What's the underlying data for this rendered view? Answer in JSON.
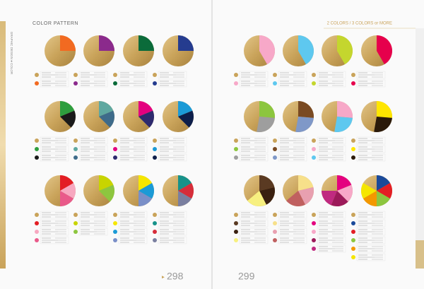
{
  "left_page": {
    "header": "COLOR PATTERN",
    "spine": "GRAPHIC DESIGN ● COLOR",
    "page_number": "298",
    "patterns": [
      {
        "colors": [
          "#f26a21"
        ]
      },
      {
        "colors": [
          "#8b2a8c"
        ]
      },
      {
        "colors": [
          "#0b6b3a"
        ]
      },
      {
        "colors": [
          "#253c8f"
        ]
      },
      {
        "colors": [
          "#2e9e3e",
          "#1a1a1a"
        ]
      },
      {
        "colors": [
          "#5fa8a0",
          "#3e6b8a"
        ]
      },
      {
        "colors": [
          "#e4007f",
          "#2d2a6e"
        ]
      },
      {
        "colors": [
          "#1b9ad6",
          "#0d1e4a"
        ]
      },
      {
        "colors": [
          "#e31e24",
          "#f7a8c0",
          "#e95a8a"
        ]
      },
      {
        "colors": [
          "#c8d400",
          "#8dc63f"
        ]
      },
      {
        "colors": [
          "#f5e600",
          "#1b9ad6",
          "#7a8fc8"
        ]
      },
      {
        "colors": [
          "#17928a",
          "#d62d3a",
          "#7a7fa0"
        ]
      }
    ]
  },
  "right_page": {
    "header": "2 COLORS / 3 COLORS or MORE",
    "page_number": "299",
    "patterns": [
      {
        "colors": [
          "#f7a8c8"
        ]
      },
      {
        "colors": [
          "#5ec8ef"
        ]
      },
      {
        "colors": [
          "#c4d62e"
        ]
      },
      {
        "colors": [
          "#e6004c"
        ]
      },
      {
        "colors": [
          "#8cc63f",
          "#9e9e9e"
        ]
      },
      {
        "colors": [
          "#7a4a22",
          "#7f98c8"
        ]
      },
      {
        "colors": [
          "#f7a8c8",
          "#5ec8ef"
        ]
      },
      {
        "colors": [
          "#ffe600",
          "#2b1a0a"
        ]
      },
      {
        "colors": [
          "#5a3a22",
          "#3a2010",
          "#f7f080"
        ]
      },
      {
        "colors": [
          "#f7e08a",
          "#e8a0b0",
          "#c06060"
        ]
      },
      {
        "colors": [
          "#e4007f",
          "#f7a8c8",
          "#9c1a5a",
          "#c02a80"
        ]
      },
      {
        "colors": [
          "#1b4a9a",
          "#e31e24",
          "#8dc63f",
          "#f39800",
          "#f5e600"
        ]
      }
    ]
  }
}
